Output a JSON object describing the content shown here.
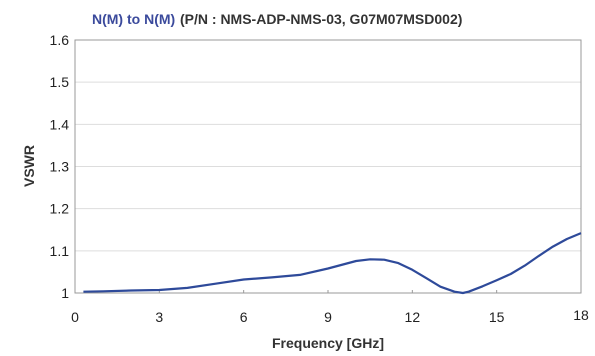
{
  "chart_data": {
    "type": "line",
    "title": "N(M) to N(M)",
    "subtitle": "(P/N : NMS-ADP-NMS-03, G07M07MSD002)",
    "xlabel": "Frequency [GHz]",
    "ylabel": "VSWR",
    "xlim": [
      0,
      18
    ],
    "ylim": [
      1,
      1.6
    ],
    "x_ticks": [
      "0",
      "3",
      "6",
      "9",
      "12",
      "15",
      "18"
    ],
    "y_ticks": [
      "1",
      "1.1",
      "1.2",
      "1.3",
      "1.4",
      "1.5",
      "1.6"
    ],
    "grid": "horizontal",
    "colors": {
      "line": "#2e4a9a",
      "title": "#3b4a9c",
      "grid": "#dddddd",
      "frame": "#999999"
    },
    "series": [
      {
        "x": [
          0.3,
          1.0,
          2.0,
          3.0,
          4.0,
          5.0,
          6.0,
          7.0,
          8.0,
          9.0,
          10.0,
          10.5,
          11.0,
          11.5,
          12.0,
          12.5,
          13.0,
          13.5,
          13.8,
          14.0,
          14.5,
          15.0,
          15.5,
          16.0,
          16.5,
          17.0,
          17.5,
          18.0
        ],
        "y": [
          1.003,
          1.004,
          1.006,
          1.007,
          1.012,
          1.022,
          1.032,
          1.037,
          1.043,
          1.058,
          1.076,
          1.08,
          1.079,
          1.071,
          1.055,
          1.035,
          1.015,
          1.003,
          1.0,
          1.003,
          1.016,
          1.03,
          1.045,
          1.065,
          1.088,
          1.11,
          1.128,
          1.142
        ]
      }
    ]
  }
}
